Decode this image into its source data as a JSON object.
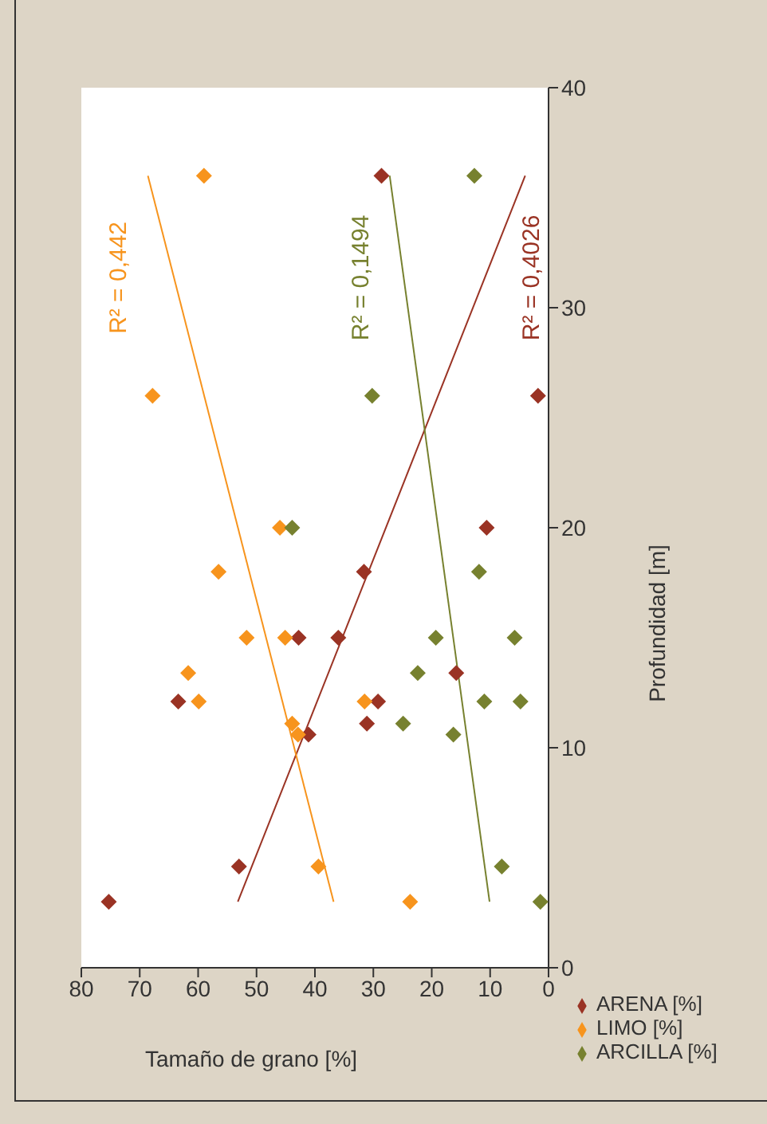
{
  "chart_data": {
    "type": "scatter",
    "xlabel": "Tamaño de grano [%]",
    "ylabel": "Profundidad [m]",
    "xlim": [
      80,
      0
    ],
    "xticks": [
      80,
      70,
      60,
      50,
      40,
      30,
      20,
      10,
      0
    ],
    "ylim": [
      0,
      40
    ],
    "yticks": [
      0,
      10,
      20,
      30,
      40
    ],
    "legend": "bottom right",
    "series": [
      {
        "name": "ARENA [%]",
        "color": "#9a3324",
        "marker": "diamond",
        "x": [
          28.6,
          1.8,
          10.6,
          31.6,
          42.8,
          36.0,
          15.8,
          63.4,
          29.2,
          31.1,
          41.1,
          53.0,
          75.3
        ],
        "values": [
          36,
          26,
          20,
          18,
          15,
          15,
          13.4,
          12.1,
          12.1,
          11.1,
          10.6,
          4.6,
          3
        ]
      },
      {
        "name": "LIMO [%]",
        "color": "#f7941d",
        "marker": "diamond",
        "x": [
          59.0,
          67.8,
          46.0,
          56.5,
          51.7,
          45.1,
          61.7,
          59.9,
          31.5,
          43.9,
          42.9,
          39.4,
          23.7
        ],
        "values": [
          36,
          26,
          20,
          18,
          15,
          15,
          13.4,
          12.1,
          12.1,
          11.1,
          10.6,
          4.6,
          3
        ]
      },
      {
        "name": "ARCILLA [%]",
        "color": "#77812f",
        "marker": "diamond",
        "x": [
          12.7,
          30.2,
          43.9,
          11.9,
          5.8,
          19.3,
          22.4,
          11.0,
          4.8,
          24.9,
          16.3,
          8.0,
          1.4
        ],
        "values": [
          36,
          26,
          20,
          18,
          15,
          15,
          13.4,
          12.1,
          12.1,
          11.1,
          10.6,
          4.6,
          3
        ]
      },
      {
        "type": "line",
        "color": "#9a3324",
        "marker": "none",
        "x": [
          53.2,
          4.0
        ],
        "values": [
          3,
          36
        ]
      },
      {
        "type": "line",
        "color": "#f7941d",
        "marker": "none",
        "x": [
          36.8,
          68.6
        ],
        "values": [
          3,
          36
        ]
      },
      {
        "type": "line",
        "color": "#77812f",
        "marker": "none",
        "x": [
          10.1,
          27.2
        ],
        "values": [
          3,
          36
        ]
      }
    ],
    "annotations": [
      "R² = 0,4026",
      "R² = 0,442",
      "R² = 0,1494"
    ]
  }
}
